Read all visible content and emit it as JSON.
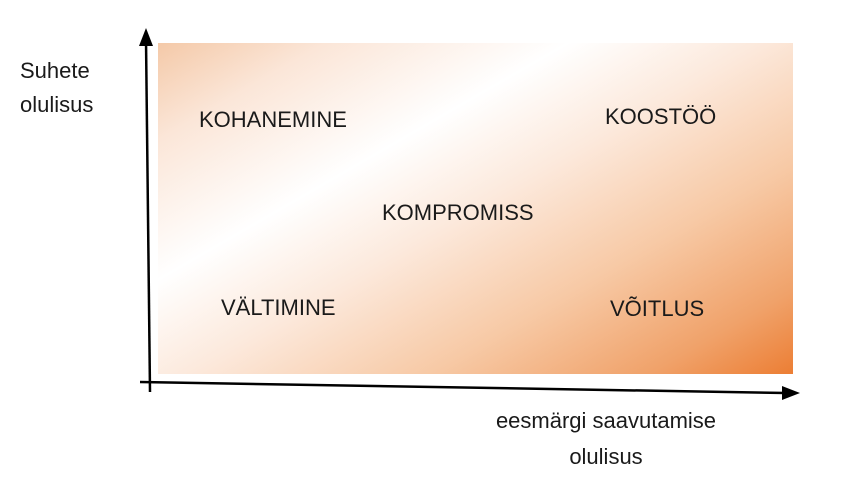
{
  "axes": {
    "y_label_line1": "Suhete",
    "y_label_line2": "olulisus",
    "x_label_line1": "eesmärgi saavutamise",
    "x_label_line2": "olulisus"
  },
  "quadrants": {
    "top_left": "KOHANEMINE",
    "top_right": "KOOSTÖÖ",
    "center": "KOMPROMISS",
    "bottom_left": "VÄLTIMINE",
    "bottom_right": "VÕITLUS"
  },
  "colors": {
    "gradient_light": "#ffffff",
    "gradient_dark": "#ec7e34",
    "axis": "#000000"
  }
}
